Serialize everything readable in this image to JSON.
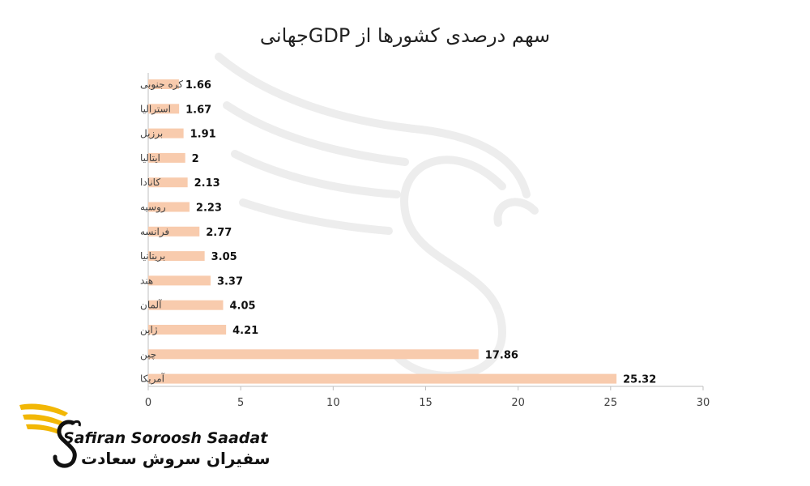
{
  "chart_data": {
    "type": "bar",
    "orientation": "horizontal",
    "title": "سهم درصدی کشورها از GDPجهانی",
    "categories": [
      "کره جنوبی",
      "استرالیا",
      "برزیل",
      "ایتالیا",
      "کانادا",
      "روسیه",
      "فرانسه",
      "بریتانیا",
      "هند",
      "آلمان",
      "ژاپن",
      "چین",
      "آمریکا"
    ],
    "values": [
      1.66,
      1.67,
      1.91,
      2,
      2.13,
      2.23,
      2.77,
      3.05,
      3.37,
      4.05,
      4.21,
      17.86,
      25.32
    ],
    "value_labels": [
      "1.66",
      "1.67",
      "1.91",
      "2",
      "2.13",
      "2.23",
      "2.77",
      "3.05",
      "3.37",
      "4.05",
      "4.21",
      "17.86",
      "25.32"
    ],
    "xlim": [
      0,
      30
    ],
    "xticks": [
      "0",
      "5",
      "10",
      "15",
      "20",
      "25",
      "30"
    ],
    "grid": false,
    "bar_color": "#F8CBAD"
  },
  "brand": {
    "name_en": "Safiran Soroosh Saadat",
    "name_fa": "سفیران سروش سعادت",
    "logo_icon": "winged-s-logo-icon",
    "colors": {
      "wing": "#F2B705",
      "text": "#111111"
    }
  }
}
